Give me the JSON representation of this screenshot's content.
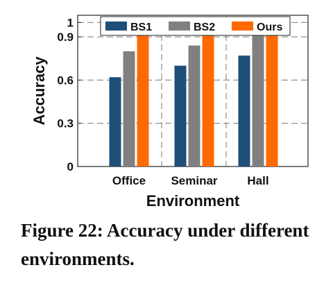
{
  "chart_data": {
    "type": "bar",
    "categories": [
      "Office",
      "Seminar",
      "Hall"
    ],
    "series": [
      {
        "name": "BS1",
        "values": [
          0.62,
          0.7,
          0.77
        ],
        "color": "#1f4e79"
      },
      {
        "name": "BS2",
        "values": [
          0.8,
          0.84,
          0.91
        ],
        "color": "#808080"
      },
      {
        "name": "Ours",
        "values": [
          0.96,
          0.98,
          0.98
        ],
        "color": "#ff6a00"
      }
    ],
    "xlabel": "Environment",
    "ylabel": "Accuracy",
    "ylim": [
      0,
      1.05
    ],
    "yticks": [
      "0",
      "0.3",
      "0.6",
      "0.9",
      "1"
    ],
    "ytick_values": [
      0,
      0.3,
      0.6,
      0.9,
      1.0
    ],
    "grid": "horizontal dashed",
    "legend_position": "top"
  },
  "caption": "Figure 22: Accuracy under different environments."
}
